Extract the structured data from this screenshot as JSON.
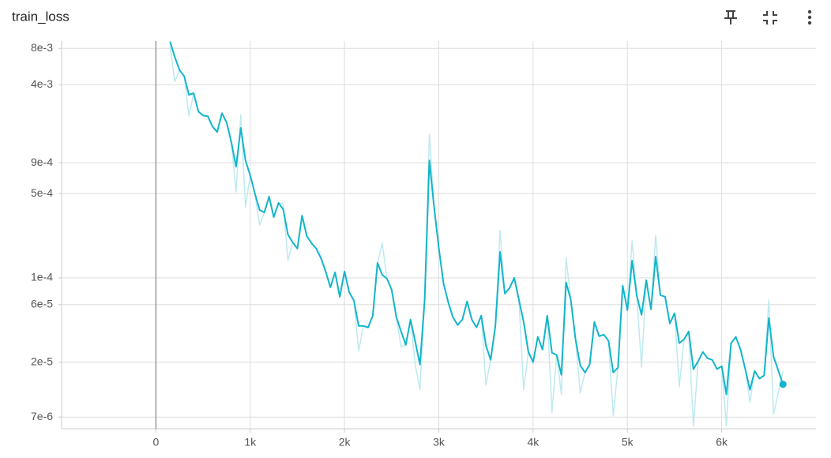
{
  "chart_data": {
    "type": "line",
    "title": "train_loss",
    "log_y": true,
    "grid": true,
    "x": [
      150,
      200,
      250,
      300,
      350,
      400,
      450,
      500,
      550,
      600,
      650,
      700,
      750,
      800,
      850,
      900,
      950,
      1000,
      1050,
      1100,
      1150,
      1200,
      1250,
      1300,
      1350,
      1400,
      1450,
      1500,
      1550,
      1600,
      1650,
      1700,
      1750,
      1800,
      1850,
      1900,
      1950,
      2000,
      2050,
      2100,
      2150,
      2200,
      2250,
      2300,
      2350,
      2400,
      2450,
      2500,
      2550,
      2600,
      2650,
      2700,
      2750,
      2800,
      2850,
      2900,
      2950,
      3000,
      3050,
      3100,
      3150,
      3200,
      3250,
      3300,
      3350,
      3400,
      3450,
      3500,
      3550,
      3600,
      3650,
      3700,
      3750,
      3800,
      3850,
      3900,
      3950,
      4000,
      4050,
      4100,
      4150,
      4200,
      4250,
      4300,
      4350,
      4400,
      4450,
      4500,
      4550,
      4600,
      4650,
      4700,
      4750,
      4800,
      4850,
      4900,
      4950,
      5000,
      5050,
      5100,
      5150,
      5200,
      5250,
      5300,
      5350,
      5400,
      5450,
      5500,
      5550,
      5600,
      5650,
      5700,
      5750,
      5800,
      5850,
      5900,
      5950,
      6000,
      6050,
      6100,
      6150,
      6200,
      6250,
      6300,
      6350,
      6400,
      6450,
      6500,
      6550,
      6650
    ],
    "series": [
      {
        "color": "#bfe9f0",
        "values": [
          0.00835,
          0.00424,
          0.0053,
          0.0047,
          0.0022,
          0.0034,
          0.0024,
          0.00222,
          0.00219,
          0.0018,
          0.00162,
          0.00232,
          0.00194,
          0.00133,
          0.000516,
          0.00225,
          0.000387,
          0.000708,
          0.0005,
          0.000274,
          0.000349,
          0.000471,
          0.000319,
          0.000418,
          0.000411,
          0.000139,
          0.000197,
          0.000175,
          0.000328,
          0.000222,
          0.000194,
          0.000175,
          0.000146,
          0.000113,
          8.35e-05,
          0.000111,
          6.97e-05,
          0.000113,
          7.62e-05,
          6.46e-05,
          2.47e-05,
          3.99e-05,
          3.88e-05,
          4.86e-05,
          0.000133,
          0.000194,
          9.85e-05,
          7.98e-05,
          4.71e-05,
          2.66e-05,
          2.78e-05,
          4.51e-05,
          1.91e-05,
          1.18e-05,
          6.56e-05,
          0.00155,
          0.000387,
          0.000177,
          9e-05,
          6.27e-05,
          4.71e-05,
          4.06e-05,
          4.51e-05,
          6.37e-05,
          4.51e-05,
          3.88e-05,
          4.86e-05,
          1.29e-05,
          2.09e-05,
          3.99e-05,
          0.000247,
          7.4e-05,
          8.22e-05,
          0.0001,
          6.56e-05,
          1.18e-05,
          2.43e-05,
          2e-05,
          3.24e-05,
          2.54e-05,
          4.86e-05,
          7.62e-06,
          2.29e-05,
          1.08e-05,
          0.000146,
          6.56e-05,
          3.09e-05,
          1.11e-05,
          1.64e-05,
          1.91e-05,
          4.31e-05,
          3.28e-05,
          3.38e-05,
          3e-05,
          7.18e-06,
          1.8e-05,
          8.6e-05,
          5.4e-05,
          0.000203,
          7.08e-05,
          1.82e-05,
          9.56e-05,
          5.48e-05,
          0.000225,
          7.18e-05,
          6.97e-05,
          4.18e-05,
          5.08e-05,
          1.25e-05,
          3.09e-05,
          3.59e-05,
          5.9e-06,
          2.03e-05,
          2.43e-05,
          2.15e-05,
          2.09e-05,
          1.75e-05,
          1.85e-05,
          5.9e-06,
          2.87e-05,
          3.24e-05,
          2.54e-05,
          1.75e-05,
          9.27e-06,
          1.69e-05,
          1.46e-05,
          1.55e-05,
          6.56e-05,
          7.4e-06,
          1.69e-05
        ]
      },
      {
        "color": "#12b5cb",
        "values": [
          0.0091,
          0.0068,
          0.0053,
          0.0047,
          0.0033,
          0.0034,
          0.0024,
          0.00222,
          0.00219,
          0.0018,
          0.00162,
          0.00232,
          0.00194,
          0.00133,
          0.000835,
          0.00175,
          0.000942,
          0.000708,
          0.0005,
          0.000365,
          0.000349,
          0.000471,
          0.000319,
          0.000418,
          0.00037,
          0.000229,
          0.000197,
          0.000175,
          0.000328,
          0.000222,
          0.000194,
          0.000175,
          0.000146,
          0.000113,
          8.35e-05,
          0.000111,
          6.97e-05,
          0.000113,
          7.62e-05,
          6.46e-05,
          3.99e-05,
          3.99e-05,
          3.88e-05,
          4.86e-05,
          0.000133,
          0.000106,
          9.85e-05,
          7.98e-05,
          4.71e-05,
          3.59e-05,
          2.78e-05,
          4.51e-05,
          2.96e-05,
          1.91e-05,
          6.56e-05,
          0.000942,
          0.000387,
          0.000177,
          9e-05,
          6.27e-05,
          4.71e-05,
          4.06e-05,
          4.51e-05,
          6.37e-05,
          4.51e-05,
          3.88e-05,
          4.86e-05,
          2.74e-05,
          2.09e-05,
          3.99e-05,
          0.000164,
          7.4e-05,
          8.22e-05,
          0.0001,
          6.56e-05,
          4.31e-05,
          2.43e-05,
          2e-05,
          3.24e-05,
          2.54e-05,
          4.86e-05,
          2.39e-05,
          2.29e-05,
          1.57e-05,
          9.14e-05,
          6.56e-05,
          3.09e-05,
          1.88e-05,
          1.64e-05,
          1.91e-05,
          4.31e-05,
          3.28e-05,
          3.38e-05,
          3e-05,
          1.64e-05,
          1.8e-05,
          8.6e-05,
          5.4e-05,
          0.000139,
          7.08e-05,
          4.93e-05,
          9.56e-05,
          5.48e-05,
          0.00015,
          7.18e-05,
          6.97e-05,
          4.18e-05,
          5.08e-05,
          2.87e-05,
          3.09e-05,
          3.59e-05,
          1.75e-05,
          2.03e-05,
          2.43e-05,
          2.15e-05,
          2.09e-05,
          1.75e-05,
          1.85e-05,
          1.08e-05,
          2.87e-05,
          3.24e-05,
          2.54e-05,
          1.75e-05,
          1.18e-05,
          1.69e-05,
          1.46e-05,
          1.55e-05,
          4.64e-05,
          2.22e-05,
          1.31e-05
        ]
      }
    ],
    "xlim": [
      -1000,
      7000
    ],
    "xticks": [
      0,
      {
        "value": 1000,
        "label": "1k"
      },
      {
        "value": 2000,
        "label": "2k"
      },
      {
        "value": 3000,
        "label": "3k"
      },
      {
        "value": 4000,
        "label": "4k"
      },
      {
        "value": 5000,
        "label": "5k"
      },
      {
        "value": 6000,
        "label": "6k"
      }
    ],
    "ylim": [
      5.6e-06,
      0.0092
    ],
    "yticks": [
      {
        "value": 0.008,
        "label": "8e-3"
      },
      {
        "value": 0.004,
        "label": "4e-3"
      },
      {
        "value": 0.0009,
        "label": "9e-4"
      },
      {
        "value": 0.0005,
        "label": "5e-4"
      },
      {
        "value": 0.0001,
        "label": "1e-4"
      },
      {
        "value": 6e-05,
        "label": "6e-5"
      },
      {
        "value": 2e-05,
        "label": "2e-5"
      },
      {
        "value": 7e-06,
        "label": "7e-6"
      }
    ]
  }
}
